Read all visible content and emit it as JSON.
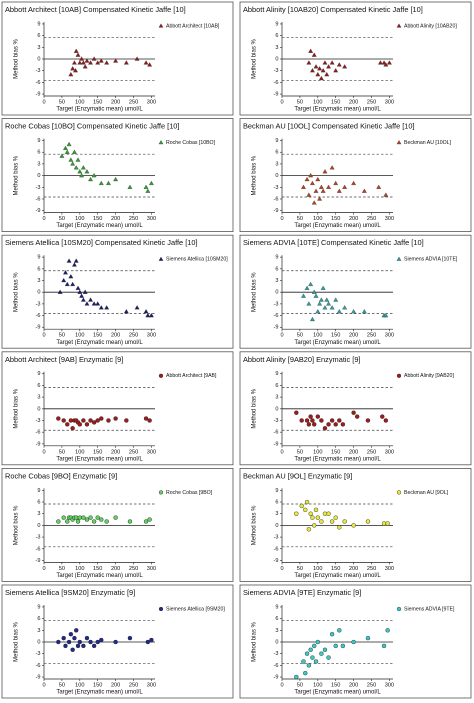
{
  "chart_data": [
    {
      "type": "scatter",
      "title": "Abbott Architect [10AB] Compensated Kinetic Jaffe [10]",
      "xlabel": "Target (Enzymatic mean) umol/L",
      "ylabel": "Method bias %",
      "xlim": [
        0,
        310
      ],
      "ylim": [
        -9.5,
        9.5
      ],
      "xticks": [
        0,
        50,
        100,
        150,
        200,
        250,
        300
      ],
      "yticks": [
        9,
        6,
        3,
        0,
        -3,
        -6,
        -9
      ],
      "ref_lines": [
        5.5,
        -5.5
      ],
      "series": [
        {
          "name": "Abbott Architect [10AB]",
          "color": "#8b1c1c",
          "marker": "triangle",
          "x": [
            75,
            80,
            85,
            88,
            90,
            95,
            100,
            105,
            110,
            115,
            120,
            130,
            140,
            150,
            160,
            175,
            200,
            230,
            260,
            285,
            295
          ],
          "values": [
            -4,
            -2.5,
            -1,
            -3,
            2,
            1,
            -1,
            0,
            -1,
            -2,
            -0.5,
            -1,
            0,
            -1,
            -0.5,
            -1,
            -0.5,
            -1,
            0,
            -1,
            -1.5
          ]
        }
      ]
    },
    {
      "type": "scatter",
      "title": "Abbott Alinity [10AB20] Compensated Kinetic Jaffe [10]",
      "xlabel": "Target (Enzymatic mean) umol/L",
      "ylabel": "Method bias %",
      "xlim": [
        0,
        310
      ],
      "ylim": [
        -9.5,
        9.5
      ],
      "xticks": [
        0,
        50,
        100,
        150,
        200,
        250,
        300
      ],
      "yticks": [
        9,
        6,
        3,
        0,
        -3,
        -6,
        -9
      ],
      "ref_lines": [
        5.5,
        -5.5
      ],
      "series": [
        {
          "name": "Abbott Alinity [10AB20]",
          "color": "#8b1c1c",
          "marker": "triangle",
          "x": [
            75,
            80,
            85,
            90,
            95,
            100,
            105,
            110,
            115,
            120,
            125,
            130,
            140,
            150,
            160,
            175,
            275,
            285,
            290,
            300
          ],
          "values": [
            -1,
            2,
            -3,
            1,
            -2,
            -4,
            -2.5,
            -5,
            -3,
            -1,
            -4,
            -2,
            -1,
            -3,
            -1.5,
            -2,
            -1,
            -1,
            -1.5,
            -1
          ]
        }
      ]
    },
    {
      "type": "scatter",
      "title": "Roche Cobas [10BO] Compensated Kinetic Jaffe [10]",
      "xlabel": "Target (Enzymatic mean) umol/L",
      "ylabel": "Method bias %",
      "xlim": [
        0,
        310
      ],
      "ylim": [
        -9.5,
        9.5
      ],
      "xticks": [
        0,
        50,
        100,
        150,
        200,
        250,
        300
      ],
      "yticks": [
        9,
        6,
        3,
        0,
        -3,
        -6,
        -9
      ],
      "ref_lines": [
        5.5,
        -5.5
      ],
      "series": [
        {
          "name": "Roche Cobas [10BO]",
          "color": "#2e9e2e",
          "marker": "triangle",
          "x": [
            50,
            60,
            65,
            70,
            75,
            80,
            85,
            90,
            95,
            100,
            105,
            110,
            120,
            130,
            140,
            160,
            180,
            200,
            240,
            285,
            290,
            300
          ],
          "values": [
            5,
            7,
            6,
            8,
            4,
            3,
            6,
            2,
            4,
            1,
            0,
            2,
            1,
            -1,
            0,
            -2,
            -2,
            -1,
            -3,
            -3,
            -4,
            -2
          ]
        }
      ]
    },
    {
      "type": "scatter",
      "title": "Beckman AU [10OL] Compensated Kinetic Jaffe [10]",
      "xlabel": "Target (Enzymatic mean) umol/L",
      "ylabel": "Method bias %",
      "xlim": [
        0,
        310
      ],
      "ylim": [
        -9.5,
        9.5
      ],
      "xticks": [
        0,
        50,
        100,
        150,
        200,
        250,
        300
      ],
      "yticks": [
        9,
        6,
        3,
        0,
        -3,
        -6,
        -9
      ],
      "ref_lines": [
        5.5,
        -5.5
      ],
      "series": [
        {
          "name": "Beckman AU [10OL]",
          "color": "#b4421e",
          "marker": "triangle",
          "x": [
            60,
            70,
            75,
            80,
            85,
            90,
            95,
            100,
            105,
            110,
            115,
            120,
            130,
            140,
            150,
            160,
            175,
            200,
            230,
            270,
            290
          ],
          "values": [
            -3,
            -1,
            -5,
            0,
            -2,
            -7,
            -4,
            -1,
            -6,
            -3,
            -4,
            1,
            -3,
            2,
            -2,
            -4,
            -3,
            -2,
            -4,
            -3,
            -5
          ]
        }
      ]
    },
    {
      "type": "scatter",
      "title": "Siemens Atellica [10SM20] Compensated Kinetic Jaffe [10]",
      "xlabel": "Target (Enzymatic mean) umol/L",
      "ylabel": "Method bias %",
      "xlim": [
        0,
        310
      ],
      "ylim": [
        -9.5,
        9.5
      ],
      "xticks": [
        0,
        50,
        100,
        150,
        200,
        250,
        300
      ],
      "yticks": [
        9,
        6,
        3,
        0,
        -3,
        -6,
        -9
      ],
      "ref_lines": [
        5.5,
        -5.5
      ],
      "series": [
        {
          "name": "Siemens Atellica [10SM20]",
          "color": "#1b1b6e",
          "marker": "triangle",
          "x": [
            45,
            55,
            60,
            65,
            70,
            75,
            80,
            85,
            90,
            95,
            100,
            105,
            110,
            115,
            120,
            130,
            140,
            150,
            160,
            175,
            230,
            260,
            285,
            290,
            300
          ],
          "values": [
            0,
            3,
            5,
            2,
            8,
            4,
            2,
            7,
            8,
            1,
            0,
            -1,
            -2,
            0,
            -3,
            -2,
            -3,
            -3,
            -4,
            -4,
            -5,
            -4,
            -5,
            -6,
            -6
          ]
        }
      ]
    },
    {
      "type": "scatter",
      "title": "Siemens ADVIA [10TE] Compensated Kinetic Jaffe [10]",
      "xlabel": "Target (Enzymatic mean) umol/L",
      "ylabel": "Method bias %",
      "xlim": [
        0,
        310
      ],
      "ylim": [
        -9.5,
        9.5
      ],
      "xticks": [
        0,
        50,
        100,
        150,
        200,
        250,
        300
      ],
      "yticks": [
        9,
        6,
        3,
        0,
        -3,
        -6,
        -9
      ],
      "ref_lines": [
        5.5,
        -5.5
      ],
      "series": [
        {
          "name": "Siemens ADVIA [10TE]",
          "color": "#2a9d9d",
          "marker": "triangle",
          "x": [
            60,
            70,
            75,
            80,
            85,
            90,
            95,
            100,
            105,
            110,
            115,
            120,
            125,
            130,
            140,
            150,
            160,
            175,
            200,
            230,
            285,
            290
          ],
          "values": [
            -1,
            1,
            -3,
            2,
            -7,
            0,
            -1,
            -5,
            -3,
            -2,
            1,
            -4,
            -2,
            -3,
            -4,
            -2,
            -5,
            -4,
            -5,
            -5,
            -6,
            -6
          ]
        }
      ]
    },
    {
      "type": "scatter",
      "title": "Abbott Architect [9AB] Enzymatic [9]",
      "xlabel": "Target (Enzymatic mean) umol/L",
      "ylabel": "Method bias %",
      "xlim": [
        0,
        310
      ],
      "ylim": [
        -9.5,
        9.5
      ],
      "xticks": [
        0,
        50,
        100,
        150,
        200,
        250,
        300
      ],
      "yticks": [
        9,
        6,
        3,
        0,
        -3,
        -6,
        -9
      ],
      "ref_lines": [
        5.5,
        -5.5
      ],
      "series": [
        {
          "name": "Abbott Architect [9AB]",
          "color": "#a01c1c",
          "marker": "circle",
          "x": [
            40,
            55,
            65,
            75,
            80,
            85,
            90,
            95,
            100,
            110,
            120,
            130,
            140,
            150,
            160,
            180,
            200,
            230,
            285,
            295
          ],
          "values": [
            -2.5,
            -3,
            -4,
            -3,
            -5,
            -3,
            -3,
            -3.5,
            -4,
            -3,
            -4,
            -3,
            -3.5,
            -3,
            -2.5,
            -3,
            -2.5,
            -3,
            -2.5,
            -3
          ]
        }
      ]
    },
    {
      "type": "scatter",
      "title": "Abbott Alinity [9AB20] Enzymatic [9]",
      "xlabel": "Target (Enzymatic mean) umol/L",
      "ylabel": "Method bias %",
      "xlim": [
        0,
        310
      ],
      "ylim": [
        -9.5,
        9.5
      ],
      "xticks": [
        0,
        50,
        100,
        150,
        200,
        250,
        300
      ],
      "yticks": [
        9,
        6,
        3,
        0,
        -3,
        -6,
        -9
      ],
      "ref_lines": [
        5.5,
        -5.5
      ],
      "series": [
        {
          "name": "Abbott Alinity [9AB20]",
          "color": "#a01c1c",
          "marker": "circle",
          "x": [
            40,
            55,
            70,
            75,
            80,
            85,
            90,
            100,
            110,
            120,
            130,
            140,
            150,
            160,
            170,
            200,
            210,
            240,
            280,
            290
          ],
          "values": [
            -1,
            -3,
            -3,
            -4,
            -2,
            -3,
            -4,
            -2,
            -3,
            -5,
            -4,
            -3,
            -4,
            -3,
            -4,
            -1,
            -2,
            -3,
            -2,
            -3
          ]
        }
      ]
    },
    {
      "type": "scatter",
      "title": "Roche Cobas [9BO] Enzymatic [9]",
      "xlabel": "Target (Enzymatic mean) umol/L",
      "ylabel": "Method bias %",
      "xlim": [
        0,
        310
      ],
      "ylim": [
        -9.5,
        9.5
      ],
      "xticks": [
        0,
        50,
        100,
        150,
        200,
        250,
        300
      ],
      "yticks": [
        9,
        6,
        3,
        0,
        -3,
        -6,
        -9
      ],
      "ref_lines": [
        5.5,
        -5.5
      ],
      "series": [
        {
          "name": "Roche Cobas [9BO]",
          "color": "#5fd35f",
          "marker": "circle",
          "x": [
            40,
            55,
            65,
            70,
            75,
            80,
            85,
            90,
            95,
            100,
            110,
            120,
            130,
            140,
            150,
            160,
            175,
            200,
            240,
            285,
            295
          ],
          "values": [
            1,
            2,
            1,
            2,
            2,
            1.5,
            2,
            2,
            1,
            2,
            2,
            1.5,
            2,
            1,
            2,
            1.5,
            1,
            2,
            1,
            1,
            1.5
          ]
        }
      ]
    },
    {
      "type": "scatter",
      "title": "Beckman AU [9OL] Enzymatic [9]",
      "xlabel": "Target (Enzymatic mean) umol/L",
      "ylabel": "Method bias %",
      "xlim": [
        0,
        310
      ],
      "ylim": [
        -9.5,
        9.5
      ],
      "xticks": [
        0,
        50,
        100,
        150,
        200,
        250,
        300
      ],
      "yticks": [
        9,
        6,
        3,
        0,
        -3,
        -6,
        -9
      ],
      "ref_lines": [
        5.5,
        -5.5
      ],
      "series": [
        {
          "name": "Beckman AU [9OL]",
          "color": "#e8e83a",
          "marker": "circle",
          "x": [
            40,
            55,
            65,
            70,
            75,
            80,
            85,
            90,
            95,
            100,
            110,
            120,
            130,
            140,
            150,
            160,
            175,
            200,
            240,
            285,
            295
          ],
          "values": [
            3,
            5,
            4,
            6,
            -1,
            3,
            2,
            0,
            4,
            2,
            1,
            3,
            3,
            1,
            2,
            -0.5,
            1,
            0,
            1,
            0.5,
            0.5
          ]
        }
      ]
    },
    {
      "type": "scatter",
      "title": "Siemens Atellica [9SM20] Enzymatic [9]",
      "xlabel": "Target (Enzymatic mean) umol/L",
      "ylabel": "Method bias %",
      "xlim": [
        0,
        310
      ],
      "ylim": [
        -9.5,
        9.5
      ],
      "xticks": [
        0,
        50,
        100,
        150,
        200,
        250,
        300
      ],
      "yticks": [
        9,
        6,
        3,
        0,
        -3,
        -6,
        -9
      ],
      "ref_lines": [
        5.5,
        -5.5
      ],
      "series": [
        {
          "name": "Siemens Atellica [9SM20]",
          "color": "#1f2a8a",
          "marker": "circle",
          "x": [
            40,
            55,
            60,
            70,
            75,
            80,
            85,
            90,
            95,
            100,
            110,
            120,
            130,
            140,
            150,
            160,
            200,
            240,
            290,
            300
          ],
          "values": [
            0,
            1,
            -1,
            0,
            2,
            -2,
            1,
            3,
            -1,
            0,
            -1,
            1,
            0,
            -1,
            0,
            0.5,
            0,
            1,
            0,
            0.5
          ]
        }
      ]
    },
    {
      "type": "scatter",
      "title": "Siemens ADVIA [9TE] Enzymatic [9]",
      "xlabel": "Target (Enzymatic mean) umol/L",
      "ylabel": "Method bias %",
      "xlim": [
        0,
        310
      ],
      "ylim": [
        -9.5,
        9.5
      ],
      "xticks": [
        0,
        50,
        100,
        150,
        200,
        250,
        300
      ],
      "yticks": [
        9,
        6,
        3,
        0,
        -3,
        -6,
        -9
      ],
      "ref_lines": [
        5.5,
        -5.5
      ],
      "series": [
        {
          "name": "Siemens ADVIA [9TE]",
          "color": "#3cc8c8",
          "marker": "circle",
          "x": [
            40,
            60,
            65,
            70,
            75,
            80,
            85,
            90,
            95,
            100,
            110,
            120,
            130,
            140,
            150,
            160,
            170,
            200,
            240,
            285,
            295
          ],
          "values": [
            -9,
            -5,
            -8,
            -3,
            -6,
            -2,
            -4,
            -1,
            -5,
            0,
            -3,
            -2,
            -4,
            2,
            -1,
            3,
            -1,
            0,
            1,
            -1,
            3
          ]
        }
      ]
    }
  ]
}
